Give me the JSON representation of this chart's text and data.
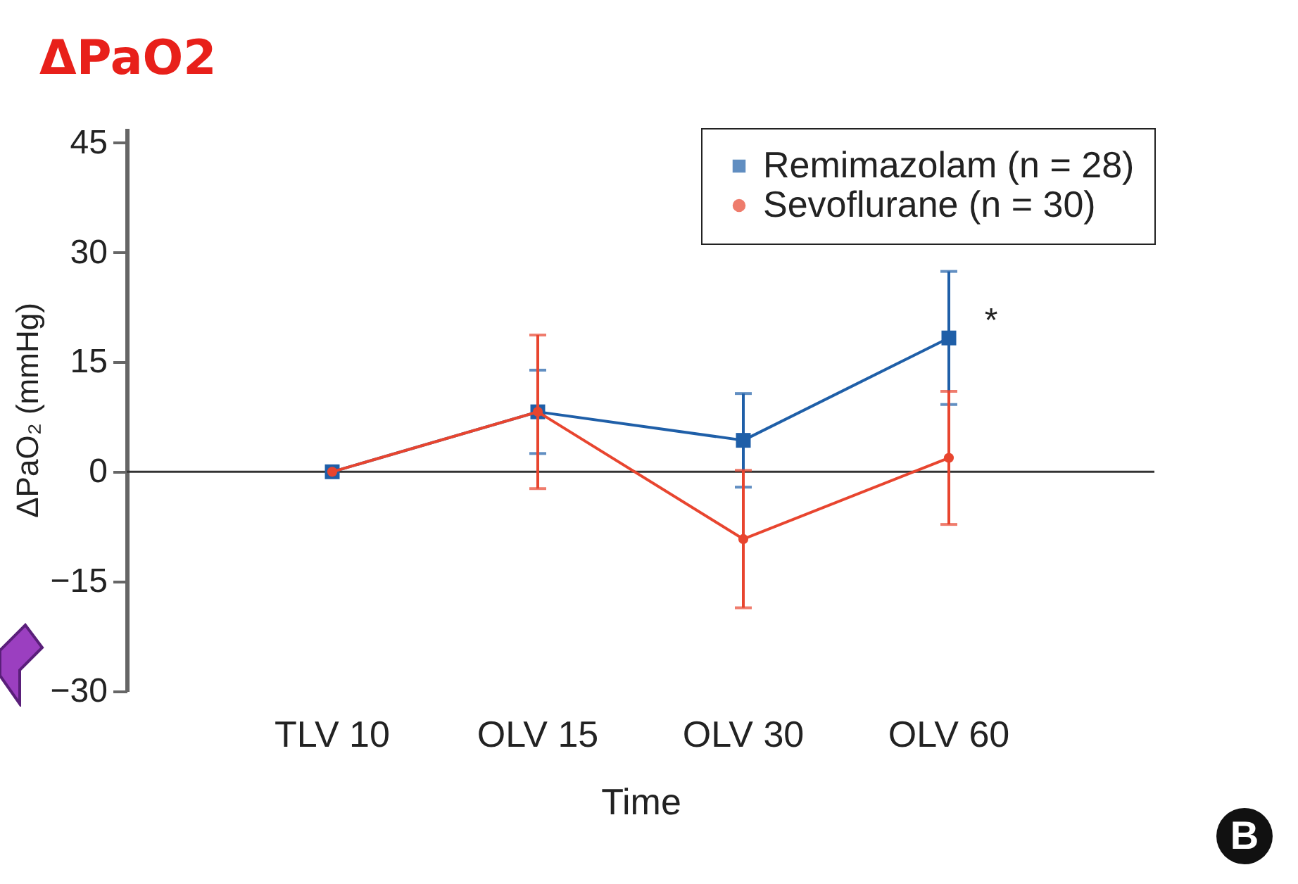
{
  "chart_data": {
    "type": "line",
    "title": "ΔPaO2",
    "xlabel": "Time",
    "ylabel": "ΔPaO₂ (mmHg)",
    "categories": [
      "TLV 10",
      "OLV 15",
      "OLV 30",
      "OLV 60"
    ],
    "series": [
      {
        "name": "Remimazolam (n = 28)",
        "color": "#1f5fa8",
        "marker": "square",
        "values": [
          0,
          8.2,
          4.3,
          18.3
        ],
        "errors": [
          null,
          5.7,
          6.4,
          9.1
        ]
      },
      {
        "name": "Sevoflurane (n = 30)",
        "color": "#e8452f",
        "marker": "circle",
        "values": [
          0,
          8.2,
          -9.2,
          1.9
        ],
        "errors": [
          null,
          10.5,
          9.4,
          9.1
        ]
      }
    ],
    "ylim": [
      -30,
      47
    ],
    "yticks": [
      -30,
      -15,
      0,
      15,
      30,
      45
    ],
    "grid": false,
    "legend": "top right",
    "ref_lines": [
      {
        "axis": "y",
        "value": 0,
        "color": "#333333"
      }
    ],
    "annotations": [
      {
        "text": "*",
        "x": "OLV 60",
        "y": 20.5
      },
      "B"
    ]
  }
}
